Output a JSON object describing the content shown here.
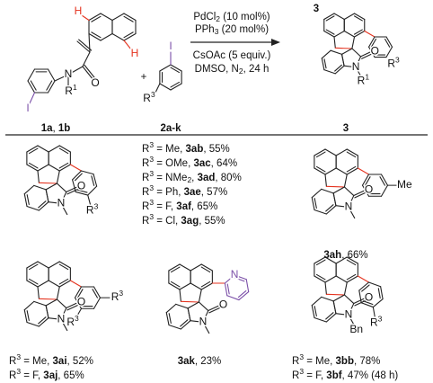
{
  "reactant_1": {
    "atoms": {
      "h_top": [
        "H"
      ],
      "h_peri": [
        "H"
      ],
      "o": [
        "O"
      ],
      "n": [
        "N"
      ],
      "r1": [
        "R",
        {
          "text": "1",
          "style": "sup"
        }
      ],
      "i": [
        "I"
      ]
    },
    "label": [
      {
        "text": "1a",
        "style": "bold"
      },
      ", ",
      {
        "text": "1b",
        "style": "bold"
      }
    ]
  },
  "plus": "+",
  "reactant_2": {
    "atoms": {
      "i": [
        "I"
      ],
      "r3": [
        "R",
        {
          "text": "3",
          "style": "sup"
        }
      ]
    },
    "label": [
      {
        "text": "2a-k",
        "style": "bold"
      }
    ]
  },
  "conditions": {
    "above": [
      [
        "PdCl",
        {
          "text": "2",
          "style": "sub"
        },
        " (10 mol%)"
      ],
      [
        "PPh",
        {
          "text": "3",
          "style": "sub"
        },
        " (20 mol%)"
      ]
    ],
    "below": [
      [
        "CsOAc (5 equiv.)"
      ],
      [
        "DMSO, N",
        {
          "text": "2",
          "style": "sub"
        },
        ", 24 h"
      ]
    ]
  },
  "product": {
    "number": [
      {
        "text": "3",
        "style": "bold"
      }
    ],
    "atoms": {
      "n": [
        "N"
      ],
      "o": [
        "O"
      ],
      "r1": [
        "R",
        {
          "text": "1",
          "style": "sup"
        }
      ],
      "r3": [
        "R",
        {
          "text": "3",
          "style": "sup"
        }
      ]
    },
    "label": [
      {
        "text": "3",
        "style": "bold"
      }
    ]
  },
  "examples": [
    {
      "atoms": {
        "n": [
          "N"
        ],
        "o": [
          "O"
        ],
        "r3": [
          "R",
          {
            "text": "3",
            "style": "sup"
          }
        ]
      },
      "results": [
        [
          "R",
          {
            "text": "3",
            "style": "sup"
          },
          " = Me, ",
          {
            "text": "3ab",
            "style": "bold"
          },
          ", 55%"
        ],
        [
          "R",
          {
            "text": "3",
            "style": "sup"
          },
          " = OMe, ",
          {
            "text": "3ac",
            "style": "bold"
          },
          ", 64%"
        ],
        [
          "R",
          {
            "text": "3",
            "style": "sup"
          },
          " = NMe",
          {
            "text": "2",
            "style": "sub"
          },
          ", ",
          {
            "text": "3ad",
            "style": "bold"
          },
          ", 80%"
        ],
        [
          "R",
          {
            "text": "3",
            "style": "sup"
          },
          " = Ph, ",
          {
            "text": "3ae",
            "style": "bold"
          },
          ", 57%"
        ],
        [
          "R",
          {
            "text": "3",
            "style": "sup"
          },
          " = F, ",
          {
            "text": "3af",
            "style": "bold"
          },
          ", 65%"
        ],
        [
          "R",
          {
            "text": "3",
            "style": "sup"
          },
          " = Cl, ",
          {
            "text": "3ag",
            "style": "bold"
          },
          ", 55%"
        ]
      ]
    },
    {
      "atoms": {
        "n": [
          "N"
        ],
        "o": [
          "O"
        ],
        "me": [
          "Me"
        ]
      },
      "results": [
        [
          {
            "text": "3ah",
            "style": "bold"
          },
          ", 66%"
        ]
      ]
    },
    {
      "atoms": {
        "n": [
          "N"
        ],
        "o": [
          "O"
        ],
        "r3_a": [
          "R",
          {
            "text": "3",
            "style": "sup"
          }
        ],
        "r3_b": [
          "R",
          {
            "text": "3",
            "style": "sup"
          }
        ]
      },
      "results": [
        [
          "R",
          {
            "text": "3",
            "style": "sup"
          },
          " = Me, ",
          {
            "text": "3ai",
            "style": "bold"
          },
          ", 52%"
        ],
        [
          "R",
          {
            "text": "3",
            "style": "sup"
          },
          " = F, ",
          {
            "text": "3aj",
            "style": "bold"
          },
          ", 65%"
        ]
      ]
    },
    {
      "atoms": {
        "n": [
          "N"
        ],
        "o": [
          "O"
        ],
        "n_py": [
          "N"
        ]
      },
      "results": [
        [
          {
            "text": "3ak",
            "style": "bold"
          },
          ", 23%"
        ]
      ]
    },
    {
      "atoms": {
        "n": [
          "N"
        ],
        "o": [
          "O"
        ],
        "bn": [
          "Bn"
        ],
        "r3": [
          "R",
          {
            "text": "3",
            "style": "sup"
          }
        ]
      },
      "results": [
        [
          "R",
          {
            "text": "3",
            "style": "sup"
          },
          " = Me, ",
          {
            "text": "3bb",
            "style": "bold"
          },
          ", 78%"
        ],
        [
          "R",
          {
            "text": "3",
            "style": "sup"
          },
          " = F, ",
          {
            "text": "3bf",
            "style": "bold"
          },
          ", 47% (48 h)"
        ]
      ]
    }
  ]
}
